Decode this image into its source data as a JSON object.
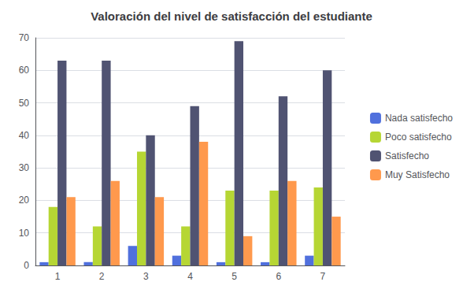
{
  "chart_data": {
    "type": "bar",
    "title": "Valoración del nivel de satisfacción del estudiante",
    "categories": [
      "1",
      "2",
      "3",
      "4",
      "5",
      "6",
      "7"
    ],
    "series": [
      {
        "name": "Nada satisfecho",
        "values": [
          1,
          1,
          6,
          3,
          1,
          1,
          3
        ]
      },
      {
        "name": "Poco satisfecho",
        "values": [
          18,
          12,
          35,
          12,
          23,
          23,
          24
        ]
      },
      {
        "name": "Satisfecho",
        "values": [
          63,
          63,
          40,
          49,
          69,
          52,
          60
        ]
      },
      {
        "name": "Muy Satisfecho",
        "values": [
          21,
          26,
          21,
          38,
          9,
          26,
          15
        ]
      }
    ],
    "ylim": [
      0,
      70
    ],
    "yticks": [
      0,
      10,
      20,
      30,
      40,
      50,
      60,
      70
    ],
    "grid": true,
    "legend": "right"
  }
}
